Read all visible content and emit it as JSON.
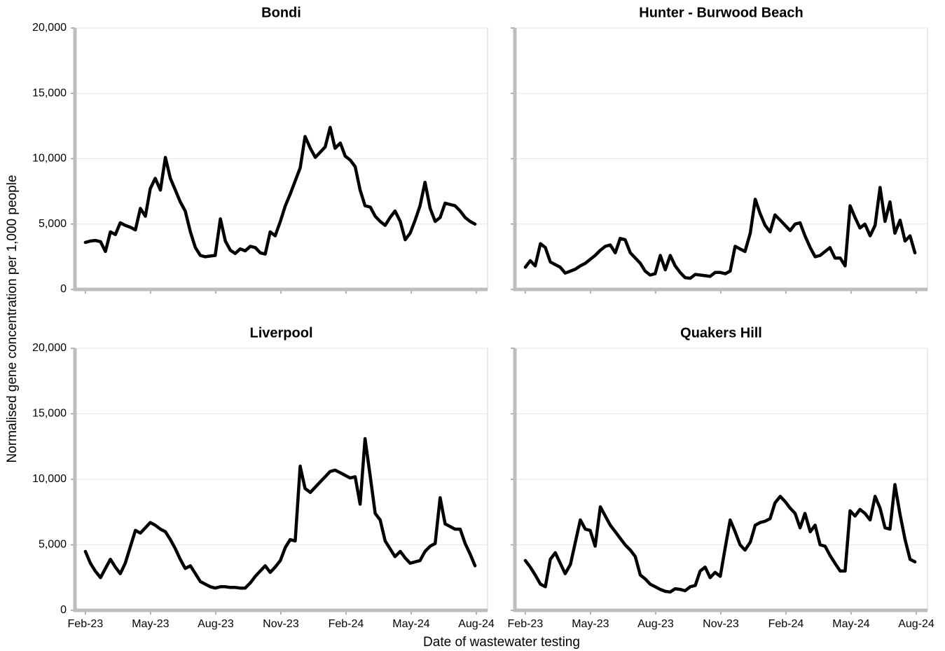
{
  "ylabel": "Normalised gene concentration per 1,000 people",
  "xlabel": "Date of wastewater testing",
  "chart_data": [
    {
      "type": "line",
      "title": "Bondi",
      "color": "#000000",
      "grid": true,
      "ytick_labels": true,
      "xtick_labels": false,
      "ylim": [
        0,
        20000
      ],
      "yticks": [
        0,
        {
          "value": 5000,
          "label": "5,000"
        },
        {
          "value": 10000,
          "label": "10,000"
        },
        {
          "value": 15000,
          "label": "15,000"
        },
        {
          "value": 20000,
          "label": "20,000"
        }
      ],
      "xlim": [
        2023.043,
        2024.626
      ],
      "xticks": [
        2023.083,
        2023.333,
        2023.583,
        2023.833,
        2024.083,
        2024.333,
        2024.583
      ],
      "x": [
        2023.083,
        2023.102,
        2023.121,
        2023.141,
        2023.16,
        2023.179,
        2023.198,
        2023.217,
        2023.236,
        2023.256,
        2023.275,
        2023.294,
        2023.313,
        2023.332,
        2023.351,
        2023.371,
        2023.39,
        2023.409,
        2023.428,
        2023.447,
        2023.466,
        2023.486,
        2023.505,
        2023.524,
        2023.543,
        2023.562,
        2023.581,
        2023.601,
        2023.62,
        2023.639,
        2023.658,
        2023.677,
        2023.696,
        2023.716,
        2023.735,
        2023.754,
        2023.773,
        2023.792,
        2023.811,
        2023.831,
        2023.85,
        2023.869,
        2023.888,
        2023.907,
        2023.926,
        2023.946,
        2023.965,
        2023.984,
        2024.003,
        2024.022,
        2024.041,
        2024.061,
        2024.08,
        2024.099,
        2024.118,
        2024.137,
        2024.156,
        2024.176,
        2024.195,
        2024.214,
        2024.233,
        2024.252,
        2024.271,
        2024.291,
        2024.31,
        2024.329,
        2024.348,
        2024.367,
        2024.386,
        2024.406,
        2024.425,
        2024.444,
        2024.463,
        2024.482,
        2024.501,
        2024.521,
        2024.54,
        2024.559,
        2024.578
      ],
      "values": [
        3600,
        3700,
        3750,
        3650,
        2900,
        4400,
        4200,
        5100,
        4900,
        4750,
        4550,
        6200,
        5600,
        7700,
        8500,
        7600,
        10100,
        8500,
        7600,
        6700,
        6000,
        4400,
        3200,
        2600,
        2500,
        2550,
        2600,
        5400,
        3700,
        3000,
        2750,
        3100,
        2950,
        3300,
        3200,
        2800,
        2700,
        4400,
        4100,
        5200,
        6400,
        7300,
        8300,
        9300,
        11700,
        10800,
        10100,
        10500,
        10900,
        12400,
        10800,
        11200,
        10200,
        9900,
        9400,
        7600,
        6400,
        6300,
        5600,
        5200,
        4900,
        5500,
        6000,
        5200,
        3800,
        4300,
        5300,
        6400,
        8200,
        6200,
        5200,
        5500,
        6600,
        6500,
        6400,
        6000,
        5500,
        5200,
        5000
      ]
    },
    {
      "type": "line",
      "title": "Hunter - Burwood Beach",
      "color": "#000000",
      "grid": true,
      "ytick_labels": false,
      "xtick_labels": false,
      "ylim": [
        0,
        20000
      ],
      "yticks": [
        0,
        5000,
        10000,
        15000,
        20000
      ],
      "xlim": [
        2023.043,
        2024.626
      ],
      "xticks": [
        2023.083,
        2023.333,
        2023.583,
        2023.833,
        2024.083,
        2024.333,
        2024.583
      ],
      "x": [
        2023.083,
        2023.102,
        2023.121,
        2023.141,
        2023.16,
        2023.179,
        2023.198,
        2023.217,
        2023.236,
        2023.256,
        2023.275,
        2023.294,
        2023.313,
        2023.332,
        2023.351,
        2023.371,
        2023.39,
        2023.409,
        2023.428,
        2023.447,
        2023.466,
        2023.486,
        2023.505,
        2023.524,
        2023.543,
        2023.562,
        2023.581,
        2023.601,
        2023.62,
        2023.639,
        2023.658,
        2023.677,
        2023.696,
        2023.716,
        2023.735,
        2023.754,
        2023.773,
        2023.792,
        2023.811,
        2023.831,
        2023.85,
        2023.869,
        2023.888,
        2023.907,
        2023.926,
        2023.946,
        2023.965,
        2023.984,
        2024.003,
        2024.022,
        2024.041,
        2024.061,
        2024.08,
        2024.099,
        2024.118,
        2024.137,
        2024.156,
        2024.176,
        2024.195,
        2024.214,
        2024.233,
        2024.252,
        2024.271,
        2024.291,
        2024.31,
        2024.329,
        2024.348,
        2024.367,
        2024.386,
        2024.406,
        2024.425,
        2024.444,
        2024.463,
        2024.482,
        2024.501,
        2024.521,
        2024.54,
        2024.559,
        2024.578
      ],
      "values": [
        1700,
        2200,
        1800,
        3500,
        3200,
        2100,
        1900,
        1700,
        1250,
        1400,
        1550,
        1800,
        2000,
        2300,
        2600,
        3000,
        3300,
        3400,
        2800,
        3900,
        3800,
        2800,
        2400,
        2000,
        1400,
        1100,
        1200,
        2600,
        1500,
        2600,
        1800,
        1300,
        900,
        850,
        1150,
        1100,
        1050,
        1000,
        1300,
        1300,
        1200,
        1400,
        3300,
        3100,
        2900,
        4300,
        6900,
        5800,
        4900,
        4400,
        5700,
        5300,
        4900,
        4500,
        5000,
        5100,
        4100,
        3200,
        2500,
        2600,
        2900,
        3200,
        2400,
        2400,
        1800,
        6400,
        5500,
        4700,
        5000,
        4100,
        4900,
        7800,
        5200,
        6700,
        4300,
        5300,
        3700,
        4100,
        2800
      ]
    },
    {
      "type": "line",
      "title": "Liverpool",
      "color": "#000000",
      "grid": true,
      "ytick_labels": true,
      "xtick_labels": true,
      "ylim": [
        0,
        20000
      ],
      "yticks": [
        0,
        {
          "value": 5000,
          "label": "5,000"
        },
        {
          "value": 10000,
          "label": "10,000"
        },
        {
          "value": 15000,
          "label": "15,000"
        },
        {
          "value": 20000,
          "label": "20,000"
        }
      ],
      "xlim": [
        2023.043,
        2024.626
      ],
      "xticks": [
        {
          "value": 2023.083,
          "label": "Feb-23"
        },
        {
          "value": 2023.333,
          "label": "May-23"
        },
        {
          "value": 2023.583,
          "label": "Aug-23"
        },
        {
          "value": 2023.833,
          "label": "Nov-23"
        },
        {
          "value": 2024.083,
          "label": "Feb-24"
        },
        {
          "value": 2024.333,
          "label": "May-24"
        },
        {
          "value": 2024.583,
          "label": "Aug-24"
        }
      ],
      "x": [
        2023.083,
        2023.102,
        2023.121,
        2023.141,
        2023.16,
        2023.179,
        2023.198,
        2023.217,
        2023.236,
        2023.256,
        2023.275,
        2023.294,
        2023.313,
        2023.332,
        2023.351,
        2023.371,
        2023.39,
        2023.409,
        2023.428,
        2023.447,
        2023.466,
        2023.486,
        2023.505,
        2023.524,
        2023.543,
        2023.562,
        2023.581,
        2023.601,
        2023.62,
        2023.639,
        2023.658,
        2023.677,
        2023.696,
        2023.716,
        2023.735,
        2023.754,
        2023.773,
        2023.792,
        2023.811,
        2023.831,
        2023.85,
        2023.869,
        2023.888,
        2023.907,
        2023.926,
        2023.946,
        2023.965,
        2023.984,
        2024.003,
        2024.022,
        2024.041,
        2024.061,
        2024.08,
        2024.099,
        2024.118,
        2024.137,
        2024.156,
        2024.176,
        2024.195,
        2024.214,
        2024.233,
        2024.252,
        2024.271,
        2024.291,
        2024.31,
        2024.329,
        2024.348,
        2024.367,
        2024.386,
        2024.406,
        2024.425,
        2024.444,
        2024.463,
        2024.482,
        2024.501,
        2024.521,
        2024.54,
        2024.559,
        2024.578
      ],
      "values": [
        4500,
        3600,
        3000,
        2500,
        3200,
        3900,
        3300,
        2800,
        3600,
        4900,
        6100,
        5900,
        6300,
        6700,
        6500,
        6200,
        6000,
        5400,
        4700,
        3900,
        3200,
        3400,
        2800,
        2200,
        2000,
        1800,
        1700,
        1800,
        1800,
        1750,
        1750,
        1700,
        1700,
        2100,
        2600,
        3000,
        3400,
        2900,
        3300,
        3800,
        4800,
        5400,
        5300,
        11000,
        9300,
        9000,
        9400,
        9800,
        10200,
        10600,
        10700,
        10500,
        10300,
        10100,
        10200,
        8100,
        13100,
        10200,
        7400,
        6900,
        5300,
        4700,
        4100,
        4500,
        4000,
        3600,
        3700,
        3800,
        4500,
        4900,
        5100,
        8600,
        6600,
        6400,
        6200,
        6200,
        5100,
        4300,
        3400
      ]
    },
    {
      "type": "line",
      "title": "Quakers Hill",
      "color": "#000000",
      "grid": true,
      "ytick_labels": false,
      "xtick_labels": true,
      "ylim": [
        0,
        20000
      ],
      "yticks": [
        0,
        5000,
        10000,
        15000,
        20000
      ],
      "xlim": [
        2023.043,
        2024.626
      ],
      "xticks": [
        {
          "value": 2023.083,
          "label": "Feb-23"
        },
        {
          "value": 2023.333,
          "label": "May-23"
        },
        {
          "value": 2023.583,
          "label": "Aug-23"
        },
        {
          "value": 2023.833,
          "label": "Nov-23"
        },
        {
          "value": 2024.083,
          "label": "Feb-24"
        },
        {
          "value": 2024.333,
          "label": "May-24"
        },
        {
          "value": 2024.583,
          "label": "Aug-24"
        }
      ],
      "x": [
        2023.083,
        2023.102,
        2023.121,
        2023.141,
        2023.16,
        2023.179,
        2023.198,
        2023.217,
        2023.236,
        2023.256,
        2023.275,
        2023.294,
        2023.313,
        2023.332,
        2023.351,
        2023.371,
        2023.39,
        2023.409,
        2023.428,
        2023.447,
        2023.466,
        2023.486,
        2023.505,
        2023.524,
        2023.543,
        2023.562,
        2023.581,
        2023.601,
        2023.62,
        2023.639,
        2023.658,
        2023.677,
        2023.696,
        2023.716,
        2023.735,
        2023.754,
        2023.773,
        2023.792,
        2023.811,
        2023.831,
        2023.85,
        2023.869,
        2023.888,
        2023.907,
        2023.926,
        2023.946,
        2023.965,
        2023.984,
        2024.003,
        2024.022,
        2024.041,
        2024.061,
        2024.08,
        2024.099,
        2024.118,
        2024.137,
        2024.156,
        2024.176,
        2024.195,
        2024.214,
        2024.233,
        2024.252,
        2024.271,
        2024.291,
        2024.31,
        2024.329,
        2024.348,
        2024.367,
        2024.386,
        2024.406,
        2024.425,
        2024.444,
        2024.463,
        2024.482,
        2024.501,
        2024.521,
        2024.54,
        2024.559,
        2024.578
      ],
      "values": [
        3800,
        3300,
        2700,
        2000,
        1800,
        3900,
        4400,
        3600,
        2800,
        3500,
        5200,
        6900,
        6200,
        6100,
        4900,
        7900,
        7200,
        6500,
        6000,
        5500,
        5000,
        4600,
        4100,
        2700,
        2400,
        2000,
        1800,
        1600,
        1450,
        1400,
        1650,
        1600,
        1500,
        1800,
        1900,
        3000,
        3300,
        2500,
        2900,
        2600,
        4800,
        6900,
        6000,
        5000,
        4600,
        5200,
        6500,
        6700,
        6800,
        7000,
        8200,
        8700,
        8300,
        7800,
        7400,
        6300,
        7400,
        6000,
        6500,
        5000,
        4900,
        4200,
        3600,
        3000,
        3000,
        7600,
        7200,
        7700,
        7400,
        6900,
        8700,
        7800,
        6300,
        6200,
        9600,
        7300,
        5400,
        3900,
        3700
      ]
    }
  ]
}
